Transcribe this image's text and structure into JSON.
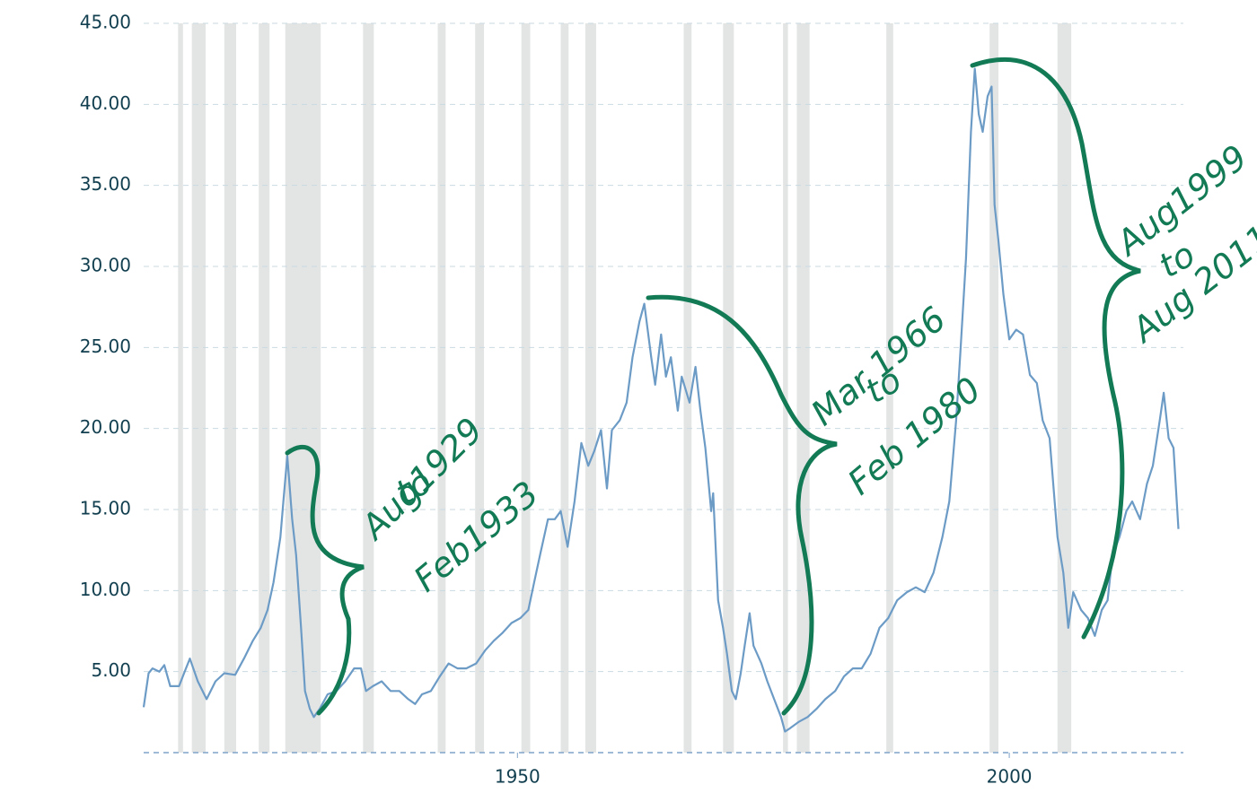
{
  "chart_data": {
    "type": "line",
    "x": [
      1912.0,
      1912.5,
      1912.9,
      1913.6,
      1914.1,
      1914.7,
      1915.6,
      1916.3,
      1916.7,
      1917.5,
      1918.4,
      1919.3,
      1920.2,
      1921.3,
      1922.2,
      1923.1,
      1923.9,
      1924.6,
      1925.2,
      1925.9,
      1926.2,
      1926.6,
      1927.1,
      1927.5,
      1928.0,
      1928.4,
      1928.9,
      1929.3,
      1929.9,
      1930.7,
      1931.6,
      1932.5,
      1933.4,
      1934.1,
      1934.6,
      1935.3,
      1936.2,
      1937.1,
      1938.0,
      1938.9,
      1939.6,
      1940.3,
      1941.2,
      1942.1,
      1943.0,
      1943.9,
      1944.8,
      1945.8,
      1946.7,
      1947.6,
      1948.5,
      1949.4,
      1950.3,
      1951.1,
      1951.7,
      1952.3,
      1953.1,
      1953.8,
      1954.4,
      1955.1,
      1955.8,
      1956.5,
      1957.2,
      1957.8,
      1958.5,
      1959.1,
      1959.6,
      1960.4,
      1961.1,
      1961.7,
      1962.4,
      1962.9,
      1963.6,
      1964.0,
      1964.6,
      1965.1,
      1965.6,
      1966.3,
      1966.7,
      1967.5,
      1968.1,
      1968.6,
      1969.1,
      1969.7,
      1969.9,
      1970.4,
      1970.9,
      1971.3,
      1971.8,
      1972.2,
      1972.7,
      1973.1,
      1973.6,
      1974.0,
      1974.8,
      1975.4,
      1976.1,
      1976.8,
      1977.2,
      1977.7,
      1978.6,
      1979.5,
      1980.4,
      1981.3,
      1982.3,
      1983.2,
      1984.1,
      1985.0,
      1985.9,
      1986.8,
      1987.7,
      1988.6,
      1989.6,
      1990.5,
      1991.4,
      1992.3,
      1993.2,
      1993.9,
      1994.6,
      1995.0,
      1995.6,
      1996.1,
      1996.5,
      1996.9,
      1997.3,
      1997.8,
      1998.2,
      1998.5,
      1998.9,
      1999.4,
      2000.0,
      2000.7,
      2001.4,
      2002.1,
      2002.8,
      2003.4,
      2004.1,
      2004.9,
      2005.5,
      2006.0,
      2006.5,
      2007.3,
      2008.0,
      2008.7,
      2009.4,
      2010.0,
      2010.5,
      2011.2,
      2011.9,
      2012.5,
      2013.3,
      2014.0,
      2014.6,
      2015.3,
      2015.7,
      2016.2,
      2016.7,
      2017.2
    ],
    "values": [
      2.8,
      4.9,
      5.2,
      5.0,
      5.4,
      4.1,
      4.1,
      5.2,
      5.8,
      4.4,
      3.3,
      4.4,
      4.9,
      4.8,
      5.8,
      6.9,
      7.7,
      8.8,
      10.5,
      13.3,
      15.5,
      18.3,
      14.4,
      12.2,
      7.7,
      3.8,
      2.7,
      2.2,
      2.7,
      3.6,
      3.8,
      4.4,
      5.2,
      5.2,
      3.8,
      4.1,
      4.4,
      3.8,
      3.8,
      3.3,
      3.0,
      3.6,
      3.8,
      4.7,
      5.5,
      5.2,
      5.2,
      5.5,
      6.3,
      6.9,
      7.4,
      8.0,
      8.3,
      8.8,
      10.5,
      12.2,
      14.4,
      14.4,
      14.9,
      12.7,
      15.5,
      19.1,
      17.7,
      18.6,
      19.9,
      16.3,
      19.9,
      20.5,
      21.6,
      24.4,
      26.6,
      27.7,
      24.4,
      22.7,
      25.8,
      23.2,
      24.4,
      21.1,
      23.2,
      21.6,
      23.8,
      21.1,
      18.8,
      14.9,
      16.0,
      9.4,
      7.7,
      6.1,
      3.8,
      3.3,
      4.9,
      6.6,
      8.6,
      6.6,
      5.5,
      4.4,
      3.3,
      2.2,
      1.3,
      1.5,
      1.9,
      2.2,
      2.7,
      3.3,
      3.8,
      4.7,
      5.2,
      5.2,
      6.1,
      7.7,
      8.3,
      9.4,
      9.9,
      10.2,
      9.9,
      11.1,
      13.3,
      15.5,
      20.5,
      24.4,
      30.5,
      38.3,
      42.2,
      39.4,
      38.3,
      40.5,
      41.1,
      33.8,
      31.6,
      28.3,
      25.5,
      26.1,
      25.8,
      23.3,
      22.8,
      20.5,
      19.4,
      13.3,
      11.1,
      7.7,
      9.9,
      8.8,
      8.3,
      7.2,
      8.8,
      9.4,
      12.2,
      13.3,
      14.9,
      15.5,
      14.4,
      16.6,
      17.7,
      20.5,
      22.2,
      19.4,
      18.8,
      13.8
    ],
    "color": "#6c9bc6",
    "xlim": [
      1912,
      2017.7
    ],
    "ylim": [
      0,
      45
    ],
    "xticks": [
      1950,
      2000
    ],
    "yticks": [
      {
        "value": 5,
        "label": "5.00"
      },
      {
        "value": 10,
        "label": "10.00"
      },
      {
        "value": 15,
        "label": "15.00"
      },
      {
        "value": 20,
        "label": "20.00"
      },
      {
        "value": 25,
        "label": "25.00"
      },
      {
        "value": 30,
        "label": "30.00"
      },
      {
        "value": 35,
        "label": "35.00"
      },
      {
        "value": 40,
        "label": "40.00"
      },
      {
        "value": 45,
        "label": "45.00"
      }
    ],
    "grid": true,
    "recession_color": "#e3e5e5",
    "recessions": [
      [
        1915.5,
        1916.0
      ],
      [
        1916.9,
        1918.3
      ],
      [
        1920.2,
        1921.4
      ],
      [
        1923.7,
        1924.8
      ],
      [
        1926.4,
        1930.0
      ],
      [
        1934.3,
        1935.4
      ],
      [
        1941.9,
        1942.7
      ],
      [
        1945.7,
        1946.6
      ],
      [
        1950.4,
        1951.3
      ],
      [
        1954.4,
        1955.2
      ],
      [
        1956.9,
        1958.0
      ],
      [
        1966.9,
        1967.7
      ],
      [
        1970.9,
        1972.0
      ],
      [
        1977.0,
        1977.5
      ],
      [
        1978.4,
        1979.7
      ],
      [
        1987.5,
        1988.2
      ],
      [
        1998.0,
        1998.9
      ],
      [
        2004.9,
        2006.3
      ]
    ],
    "annotations": [
      {
        "lines": [
          "Aug1929",
          "to",
          "Feb1933"
        ]
      },
      {
        "lines": [
          "Mar 1966",
          "to",
          "Feb 1980"
        ]
      },
      {
        "lines": [
          "Aug1999",
          "to",
          "Aug 2011"
        ]
      }
    ]
  }
}
